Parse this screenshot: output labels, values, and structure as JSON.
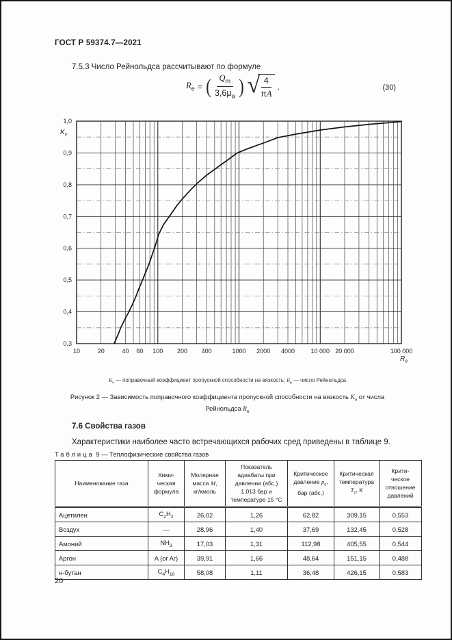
{
  "meta": {
    "standard_code": "ГОСТ Р 59374.7—2021",
    "page_number": "20"
  },
  "section_7_5_3": {
    "text": "7.5.3 Число Рейнольдса рассчитывают по формуле"
  },
  "formula": {
    "lhs": "*R*_{e}",
    "equals": "=",
    "numerator": "*Q*_{m}",
    "denominator": "3,6μ_{а}",
    "root_numerator": "4",
    "root_denominator": "π*A*",
    "tail": ".",
    "number": "(30)"
  },
  "chart_data": {
    "type": "line",
    "title": "",
    "x_scale": "log",
    "xlim": [
      10,
      100000
    ],
    "ylim": [
      0.3,
      1.0
    ],
    "xlabel_base": "R",
    "xlabel_sub": "e",
    "ylabel_base": "K",
    "ylabel_sub": "v",
    "grid": "vertical log minor lines solid; horizontal major 0.1 solid, minor 0.05 dash-dot",
    "legend_position": "none",
    "x_ticks": [
      {
        "v": 10,
        "label": "10"
      },
      {
        "v": 20,
        "label": "20"
      },
      {
        "v": 40,
        "label": "40"
      },
      {
        "v": 60,
        "label": "60"
      },
      {
        "v": 100,
        "label": "100"
      },
      {
        "v": 200,
        "label": "200"
      },
      {
        "v": 400,
        "label": "400"
      },
      {
        "v": 1000,
        "label": "1000"
      },
      {
        "v": 2000,
        "label": "2000"
      },
      {
        "v": 4000,
        "label": "4000"
      },
      {
        "v": 10000,
        "label": "10 000"
      },
      {
        "v": 20000,
        "label": "20 000"
      },
      {
        "v": 100000,
        "label": "100 000"
      }
    ],
    "y_ticks": [
      {
        "v": 1.0,
        "label": "1,0"
      },
      {
        "v": 0.9,
        "label": "0,9"
      },
      {
        "v": 0.8,
        "label": "0,8"
      },
      {
        "v": 0.7,
        "label": "0,7"
      },
      {
        "v": 0.6,
        "label": "0,6"
      },
      {
        "v": 0.5,
        "label": "0,5"
      },
      {
        "v": 0.4,
        "label": "0,4"
      },
      {
        "v": 0.3,
        "label": "0,3"
      }
    ],
    "series": [
      {
        "name": "Kv_vs_Re",
        "points": [
          [
            29,
            0.3
          ],
          [
            32,
            0.325
          ],
          [
            35,
            0.35
          ],
          [
            39,
            0.375
          ],
          [
            44,
            0.4
          ],
          [
            49,
            0.425
          ],
          [
            54,
            0.45
          ],
          [
            59,
            0.475
          ],
          [
            65,
            0.5
          ],
          [
            71,
            0.525
          ],
          [
            78,
            0.55
          ],
          [
            84,
            0.575
          ],
          [
            91,
            0.6
          ],
          [
            103,
            0.645
          ],
          [
            118,
            0.675
          ],
          [
            143,
            0.705
          ],
          [
            170,
            0.733
          ],
          [
            200,
            0.755
          ],
          [
            250,
            0.782
          ],
          [
            310,
            0.806
          ],
          [
            400,
            0.83
          ],
          [
            512,
            0.85
          ],
          [
            700,
            0.875
          ],
          [
            950,
            0.9
          ],
          [
            1300,
            0.914
          ],
          [
            2000,
            0.931
          ],
          [
            3000,
            0.948
          ],
          [
            5000,
            0.959
          ],
          [
            10000,
            0.972
          ],
          [
            20000,
            0.982
          ],
          [
            40000,
            0.99
          ],
          [
            70000,
            0.995
          ],
          [
            100000,
            0.999
          ]
        ]
      }
    ]
  },
  "figure": {
    "legend": "*K*_{v} — поправочный коэффициент пропускной способности на вязкость; *R*_{e} — число Рейнольдса",
    "caption": "Рисунок 2 — Зависимость поправочного коэффициента пропускной способности на вязкость *K*_{v} от числа\nРейнольдса *R*_{e}"
  },
  "section_7_6": {
    "heading": "7.6 Свойства газов",
    "paragraph": "Характеристики наиболее часто встречающихся рабочих сред приведены в таблице 9."
  },
  "table": {
    "label_word": "Таблица",
    "label_number": "9",
    "label_title": "— Теплофизические свойства газов",
    "columns": [
      "Наименование газа",
      "Хими-\nческая\nформула",
      "Молярная\nмасса *М*,\nкг/кмоль",
      "Показатель\nадиабаты при\nдавлении (абс.)\n1,013 бар и\nтемпературе 15 °С",
      "Критическое\nдавление *p*_{с},\nбар (абс.)",
      "Критическая\nтемпература\n*T*_{с}, К",
      "Крити-\nческое\nотношение\nдавлений"
    ],
    "rows": [
      [
        "Ацетилен",
        "C_{2}H_{2}",
        "26,02",
        "1,26",
        "62,82",
        "309,15",
        "0,553"
      ],
      [
        "Воздух",
        "—",
        "28,96",
        "1,40",
        "37,69",
        "132,45",
        "0,528"
      ],
      [
        "Амоний",
        "NH_{3}",
        "17,03",
        "1,31",
        "112,98",
        "405,55",
        "0,544"
      ],
      [
        "Аргон",
        "A (or Ar)",
        "39,91",
        "1,66",
        "48,64",
        "151,15",
        "0,488"
      ],
      [
        "н-бутан",
        "C_{4}H_{10}",
        "58,08",
        "1,11",
        "36,48",
        "426,15",
        "0,583"
      ]
    ]
  }
}
